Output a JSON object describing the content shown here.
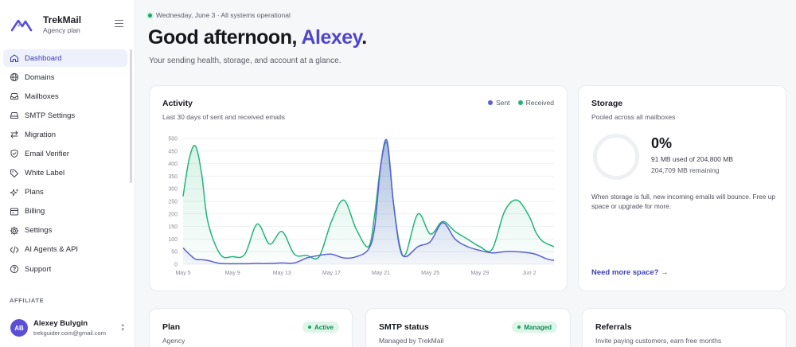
{
  "brand": {
    "name": "TrekMail",
    "plan": "Agency plan"
  },
  "nav": [
    {
      "label": "Dashboard",
      "icon": "home-icon",
      "active": true
    },
    {
      "label": "Domains",
      "icon": "globe-icon"
    },
    {
      "label": "Mailboxes",
      "icon": "inbox-icon"
    },
    {
      "label": "SMTP Settings",
      "icon": "server-icon"
    },
    {
      "label": "Migration",
      "icon": "arrows-icon"
    },
    {
      "label": "Email Verifier",
      "icon": "shield-check-icon"
    },
    {
      "label": "White Label",
      "icon": "tag-icon"
    },
    {
      "label": "Plans",
      "icon": "sparkles-icon"
    },
    {
      "label": "Billing",
      "icon": "receipt-icon"
    },
    {
      "label": "Settings",
      "icon": "gear-icon"
    },
    {
      "label": "AI Agents & API",
      "icon": "code-icon"
    },
    {
      "label": "Support",
      "icon": "help-circle-icon"
    }
  ],
  "affiliate_label": "AFFILIATE",
  "user": {
    "initials": "AB",
    "name": "Alexey Bulygin",
    "email": "trekguider.com@gmail.com"
  },
  "header": {
    "status": "Wednesday, June 3 · All systems operational",
    "greeting_prefix": "Good afternoon, ",
    "greeting_name": "Alexey",
    "greeting_suffix": ".",
    "subtitle": "Your sending health, storage, and account at a glance."
  },
  "activity": {
    "title": "Activity",
    "subtitle": "Last 30 days of sent and received emails",
    "legend_sent": "Sent",
    "legend_received": "Received"
  },
  "storage": {
    "title": "Storage",
    "subtitle": "Pooled across all mailboxes",
    "percent": "0%",
    "used": "91 MB used of 204,800 MB",
    "remaining": "204,709 MB remaining",
    "note": "When storage is full, new incoming emails will bounce. Free up space or upgrade for more.",
    "link": "Need more space? →"
  },
  "plan_card": {
    "title": "Plan",
    "badge": "Active",
    "subtitle": "Agency"
  },
  "smtp_card": {
    "title": "SMTP status",
    "badge": "Managed",
    "subtitle": "Managed by TrekMail"
  },
  "referrals_card": {
    "title": "Referrals",
    "subtitle": "Invite paying customers, earn free months"
  },
  "colors": {
    "accent": "#4f46c9",
    "sent": "#5b5fd6",
    "received": "#21b57a"
  },
  "chart_data": {
    "type": "area",
    "title": "Activity",
    "ylim": [
      0,
      500
    ],
    "yticks": [
      0,
      50,
      100,
      150,
      200,
      250,
      300,
      350,
      400,
      450,
      500
    ],
    "xtick_labels": [
      "May 5",
      "May 9",
      "May 13",
      "May 17",
      "May 21",
      "May 25",
      "May 29",
      "Jun 2"
    ],
    "grid": true,
    "legend": "top-right",
    "x": [
      0,
      0.5,
      1,
      1.5,
      2,
      3,
      4,
      5,
      6,
      7,
      8,
      9,
      10,
      11,
      12,
      13,
      14,
      15,
      15.5,
      16,
      16.5,
      17,
      17.5,
      18,
      19,
      20,
      21,
      22,
      23,
      24,
      25,
      26,
      27,
      28,
      28.5,
      29,
      29.5,
      30
    ],
    "series": [
      {
        "name": "Received",
        "values": [
          270,
          420,
          470,
          360,
          170,
          40,
          30,
          40,
          160,
          80,
          130,
          40,
          35,
          30,
          170,
          255,
          140,
          70,
          200,
          400,
          480,
          250,
          80,
          40,
          200,
          120,
          170,
          130,
          100,
          70,
          60,
          210,
          255,
          190,
          130,
          95,
          80,
          70
        ]
      },
      {
        "name": "Sent",
        "values": [
          65,
          40,
          20,
          18,
          15,
          3,
          2,
          2,
          3,
          3,
          5,
          5,
          25,
          35,
          40,
          25,
          30,
          60,
          150,
          400,
          490,
          250,
          70,
          30,
          70,
          90,
          165,
          100,
          70,
          55,
          45,
          50,
          50,
          45,
          40,
          30,
          20,
          15
        ]
      }
    ]
  }
}
